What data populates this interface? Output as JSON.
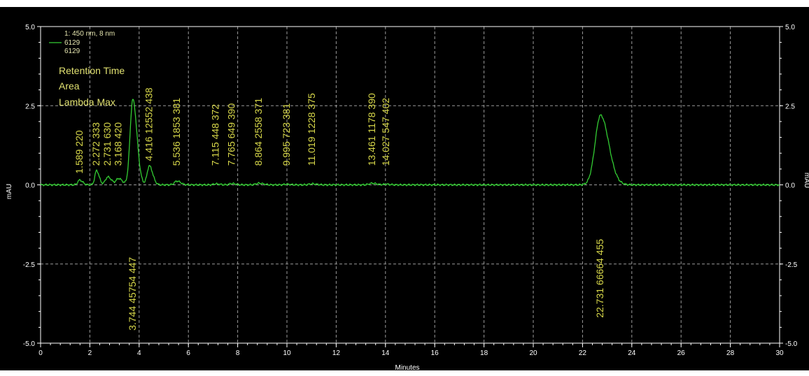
{
  "chart_data": {
    "type": "line",
    "title": "",
    "xlabel": "Minutes",
    "ylabel": "mAU",
    "xlim": [
      0,
      30
    ],
    "ylim": [
      -5.0,
      5.0
    ],
    "x_ticks": [
      "0",
      "2",
      "4",
      "6",
      "8",
      "10",
      "12",
      "14",
      "16",
      "18",
      "20",
      "22",
      "24",
      "26",
      "28",
      "30"
    ],
    "y_ticks": [
      "5.0",
      "2.5",
      "0.0",
      "-2.5",
      "-5.0"
    ],
    "grid": true,
    "background": "#000000",
    "line_color": "#33cc33",
    "label_color": "#d8d84a",
    "legend": {
      "position": "top-left",
      "entries": [
        "1: 450 nm, 8 nm",
        "6129",
        "6129"
      ],
      "peak_keys": [
        "Retention Time",
        "Area",
        "Lambda Max"
      ]
    },
    "series": [
      {
        "name": "6129",
        "peaks": [
          {
            "rt": 1.589,
            "height": 0.15,
            "width": 0.08
          },
          {
            "rt": 2.272,
            "height": 0.45,
            "width": 0.07
          },
          {
            "rt": 2.731,
            "height": 0.25,
            "width": 0.1
          },
          {
            "rt": 3.168,
            "height": 0.2,
            "width": 0.1
          },
          {
            "rt": 3.744,
            "height": 2.7,
            "width": 0.11
          },
          {
            "rt": 4.416,
            "height": 0.6,
            "width": 0.09
          },
          {
            "rt": 5.536,
            "height": 0.12,
            "width": 0.1
          },
          {
            "rt": 7.115,
            "height": 0.03,
            "width": 0.1
          },
          {
            "rt": 7.765,
            "height": 0.04,
            "width": 0.1
          },
          {
            "rt": 8.864,
            "height": 0.05,
            "width": 0.12
          },
          {
            "rt": 9.995,
            "height": 0.02,
            "width": 0.1
          },
          {
            "rt": 11.019,
            "height": 0.03,
            "width": 0.12
          },
          {
            "rt": 13.461,
            "height": 0.05,
            "width": 0.12
          },
          {
            "rt": 14.027,
            "height": 0.02,
            "width": 0.1
          },
          {
            "rt": 22.731,
            "height": 2.2,
            "width": 0.22
          }
        ]
      }
    ],
    "peak_labels": [
      {
        "text": "1.589  220",
        "x": 1.589,
        "anchor": 0.35
      },
      {
        "text": "2.272  333",
        "x": 2.272,
        "anchor": 0.6
      },
      {
        "text": "2.731  630",
        "x": 2.731,
        "anchor": 0.6
      },
      {
        "text": "3.168  420",
        "x": 3.168,
        "anchor": 0.6
      },
      {
        "text": "3.744  45754  447",
        "x": 3.744,
        "anchor": -4.6
      },
      {
        "text": "4.416  12552  438",
        "x": 4.416,
        "anchor": 0.75
      },
      {
        "text": "5.536  1853  381",
        "x": 5.536,
        "anchor": 0.6
      },
      {
        "text": "7.115  448  372",
        "x": 7.115,
        "anchor": 0.6
      },
      {
        "text": "7.765  649  390",
        "x": 7.765,
        "anchor": 0.6
      },
      {
        "text": "8.864  2558  371",
        "x": 8.864,
        "anchor": 0.6
      },
      {
        "text": "9.995  723  381",
        "x": 9.995,
        "anchor": 0.6
      },
      {
        "text": "11.019  1228  375",
        "x": 11.019,
        "anchor": 0.6
      },
      {
        "text": "13.461  1178  390",
        "x": 13.461,
        "anchor": 0.6
      },
      {
        "text": "14.027  547  402",
        "x": 14.027,
        "anchor": 0.6
      },
      {
        "text": "22.731  66664  455",
        "x": 22.731,
        "anchor": -4.2
      }
    ]
  }
}
